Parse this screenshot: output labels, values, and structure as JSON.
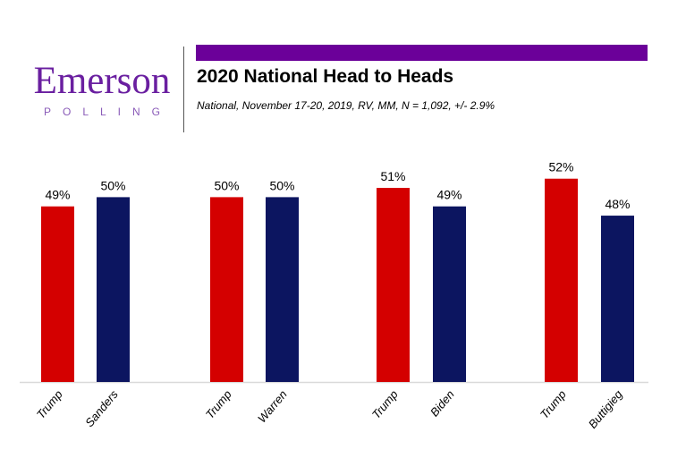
{
  "logo": {
    "name": "Emerson",
    "sub": "POLLING"
  },
  "header": {
    "title": "2020 National Head to Heads",
    "subtitle": "National, November 17-20, 2019, RV, MM, N = 1,092,  +/- 2.9%"
  },
  "chart_data": {
    "type": "bar",
    "title": "2020 National Head to Heads",
    "categories": [
      "Trump",
      "Sanders",
      "Trump",
      "Warren",
      "Trump",
      "Biden",
      "Trump",
      "Buttigieg"
    ],
    "values": [
      49,
      50,
      50,
      50,
      51,
      49,
      52,
      48
    ],
    "data_labels": [
      "49%",
      "50%",
      "50%",
      "50%",
      "51%",
      "49%",
      "52%",
      "48%"
    ],
    "groups": [
      [
        "Trump",
        "Sanders"
      ],
      [
        "Trump",
        "Warren"
      ],
      [
        "Trump",
        "Biden"
      ],
      [
        "Trump",
        "Buttigieg"
      ]
    ],
    "colors": {
      "Trump": "#d40000",
      "opponent": "#0c1560",
      "accent": "#6b0099"
    },
    "ylim": [
      30,
      55
    ],
    "grid": false,
    "legend": "none"
  }
}
